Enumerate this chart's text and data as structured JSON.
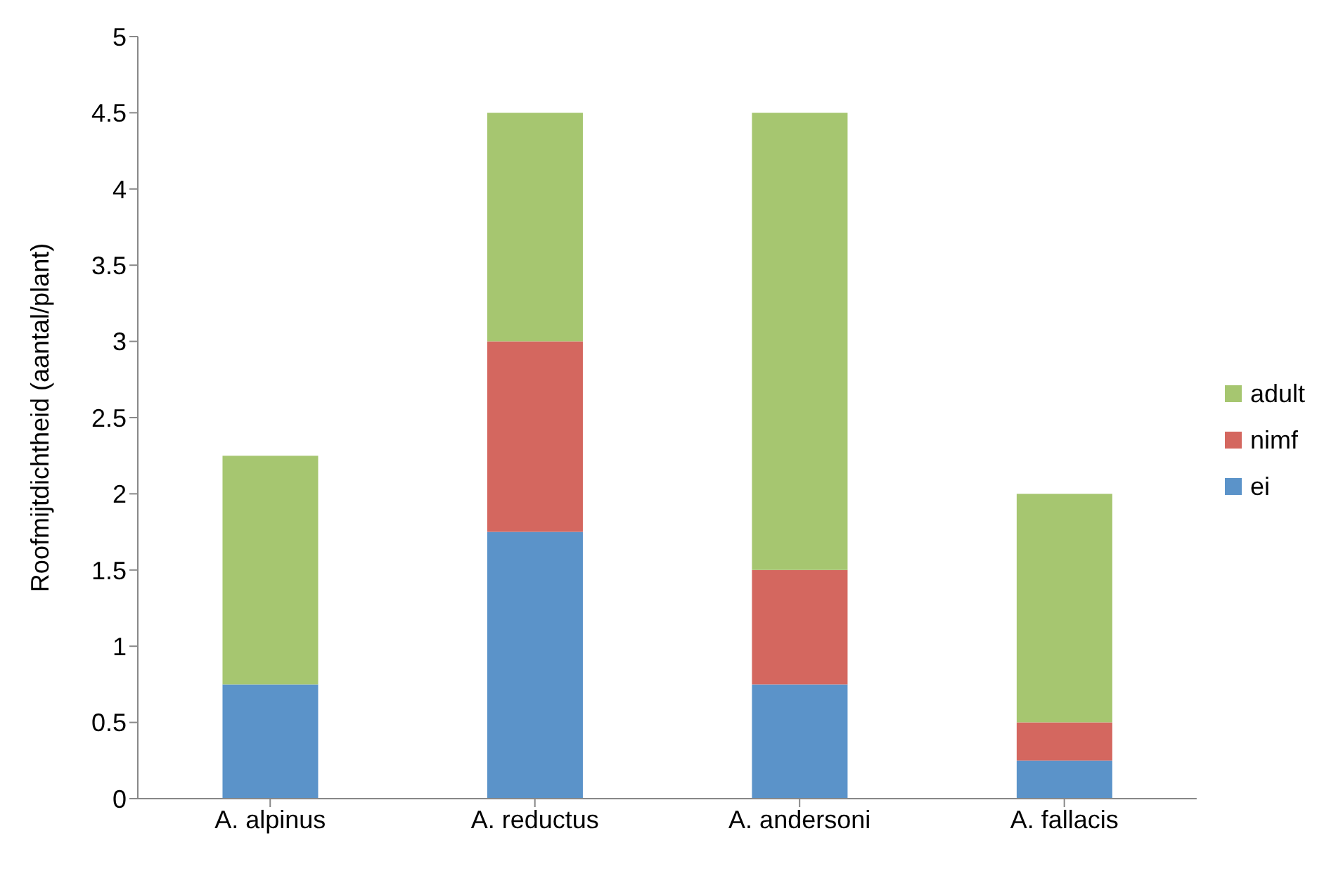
{
  "chart_data": {
    "type": "bar",
    "stacked": true,
    "ylabel": "Roofmijtdichtheid (aantal/plant)",
    "categories": [
      "A. alpinus",
      "A. reductus",
      "A. andersoni",
      "A. fallacis"
    ],
    "series": [
      {
        "name": "ei",
        "color": "#5b93c9",
        "values": [
          0.75,
          1.75,
          0.75,
          0.25
        ]
      },
      {
        "name": "nimf",
        "color": "#d4675f",
        "values": [
          0,
          1.25,
          0.75,
          0.25
        ]
      },
      {
        "name": "adult",
        "color": "#a6c670",
        "values": [
          1.5,
          1.5,
          3,
          1.5
        ]
      }
    ],
    "ylim": [
      0,
      5
    ],
    "yticks": [
      0,
      0.5,
      1,
      1.5,
      2,
      2.5,
      3,
      3.5,
      4,
      4.5,
      5
    ],
    "grid": false,
    "legend": "right"
  }
}
